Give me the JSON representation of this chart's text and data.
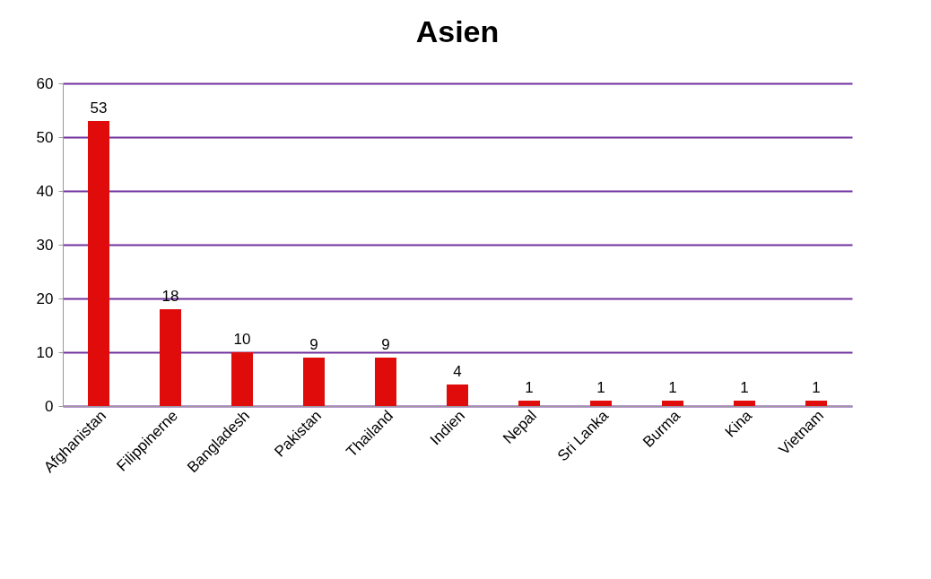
{
  "chart_data": {
    "type": "bar",
    "title": "Asien",
    "categories": [
      "Afghanistan",
      "Filippinerne",
      "Bangladesh",
      "Pakistan",
      "Thailand",
      "Indien",
      "Nepal",
      "Sri Lanka",
      "Burma",
      "Kina",
      "Vietnam"
    ],
    "values": [
      53,
      18,
      10,
      9,
      9,
      4,
      1,
      1,
      1,
      1,
      1
    ],
    "color": "#e00c0c",
    "ylim": [
      0,
      60
    ],
    "yticks": [
      0,
      10,
      20,
      30,
      40,
      50,
      60
    ],
    "grid": "y",
    "data_labels": true
  }
}
